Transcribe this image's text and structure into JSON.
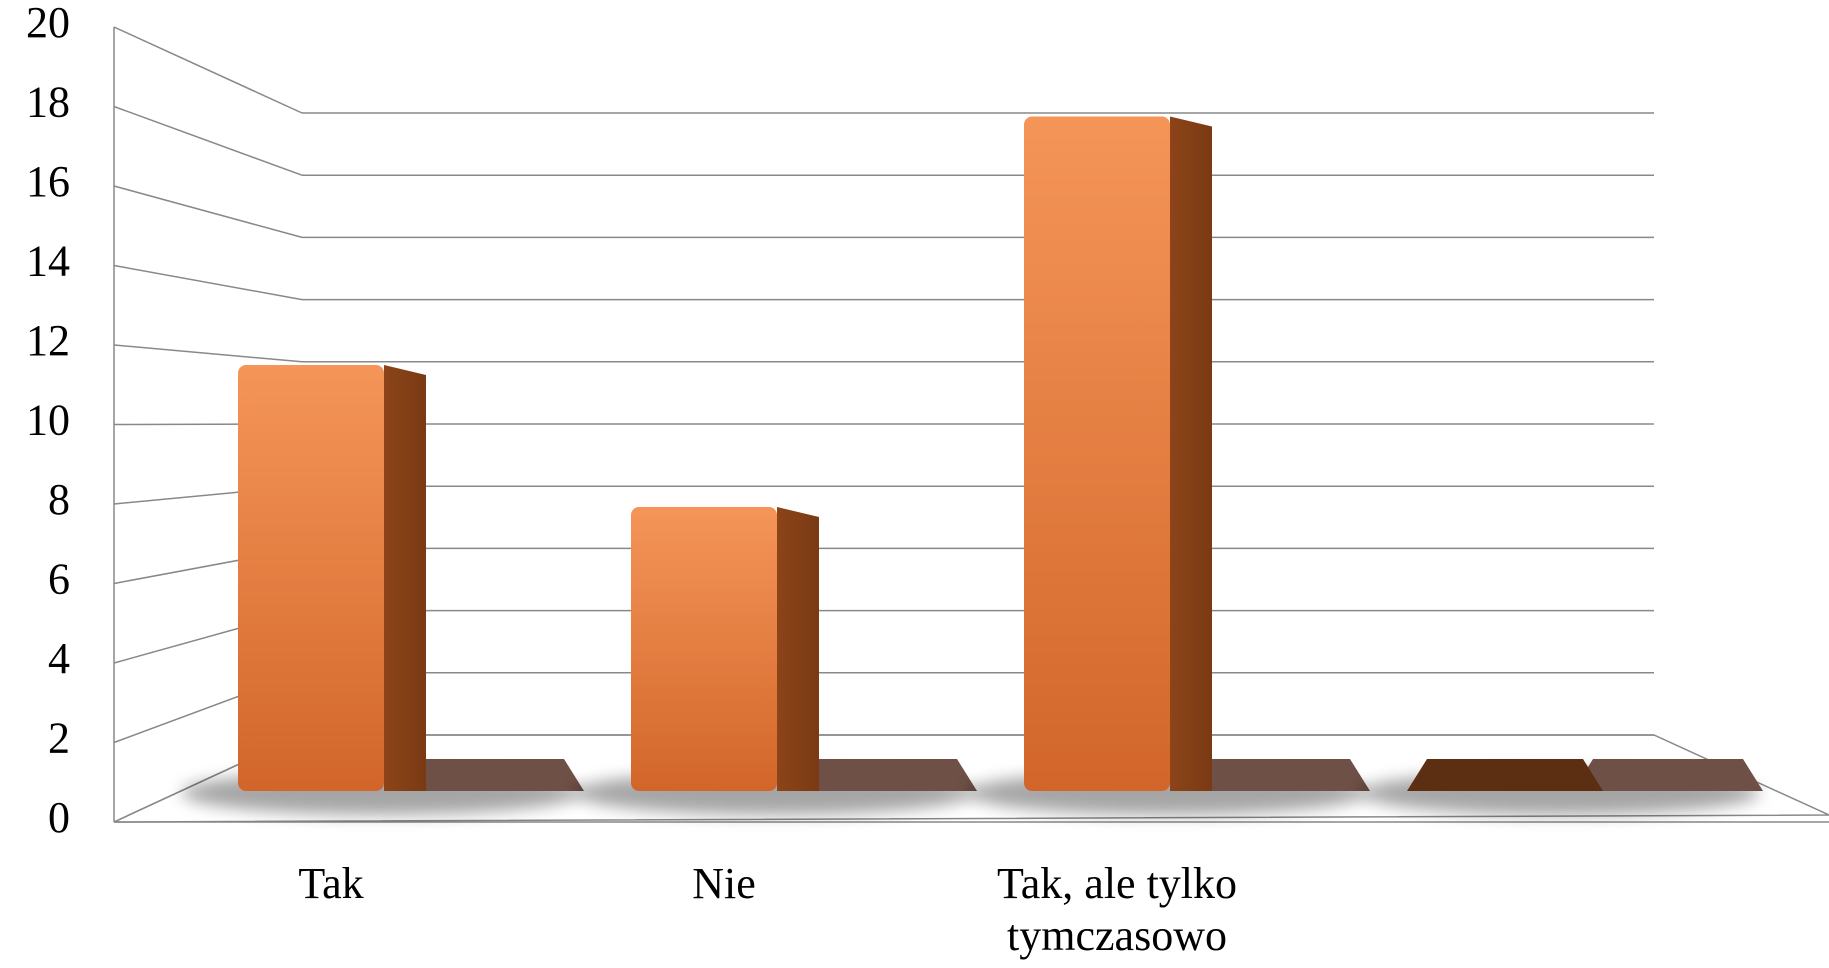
{
  "chart_data": {
    "type": "bar3d",
    "categories": [
      "Tak",
      "Nie",
      "Tak, ale tylko tymczasowo",
      null
    ],
    "values": [
      12,
      8,
      19,
      0
    ],
    "color": "#d46a2c",
    "ylim": [
      0,
      20
    ],
    "yticks": [
      0,
      2,
      4,
      6,
      8,
      10,
      12,
      14,
      16,
      18,
      20
    ],
    "grid": true
  }
}
